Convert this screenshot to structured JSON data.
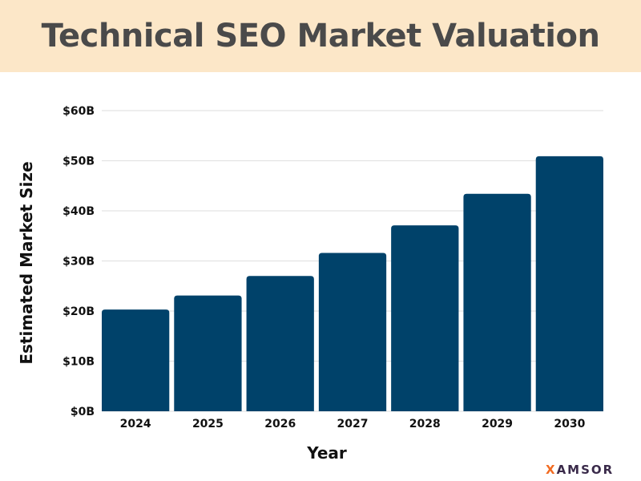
{
  "chart_data": {
    "type": "bar",
    "title": "Technical SEO Market Valuation",
    "xlabel": "Year",
    "ylabel": "Estimated Market Size",
    "categories": [
      "2024",
      "2025",
      "2026",
      "2027",
      "2028",
      "2029",
      "2030"
    ],
    "values": [
      20.3,
      23.1,
      27.0,
      31.6,
      37.1,
      43.4,
      50.9
    ],
    "ylim": [
      0,
      60
    ],
    "yticks": [
      0,
      10,
      20,
      30,
      40,
      50,
      60
    ],
    "ytick_labels": [
      "$0B",
      "$10B",
      "$20B",
      "$30B",
      "$40B",
      "$50B",
      "$60B"
    ],
    "grid": true,
    "bar_color": "#00426a",
    "title_background": "#fce7c8"
  },
  "logo": {
    "first": "X",
    "rest": "AMSOR",
    "accent": "#f26b21"
  }
}
